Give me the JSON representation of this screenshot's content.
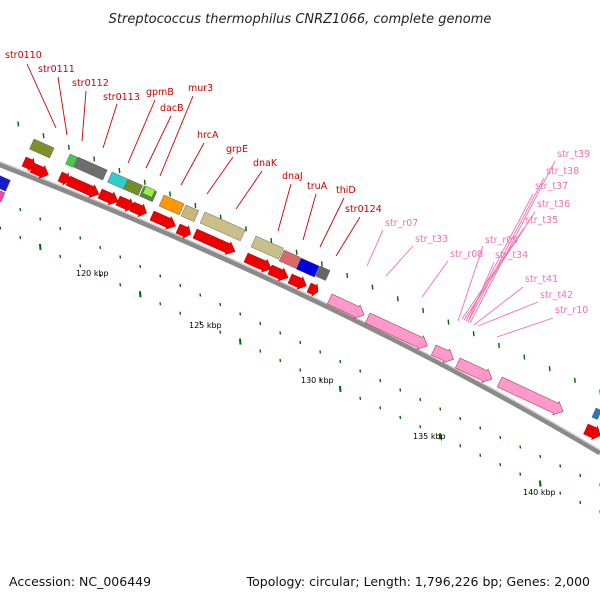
{
  "title": "Streptococcus thermophilus CNRZ1066, complete genome",
  "footer": {
    "accession": "Accession: NC_006449",
    "summary": "Topology: circular; Length: 1,796,226 bp; Genes: 2,000"
  },
  "colors": {
    "cds": "#ee0000",
    "rna": "#ff99cc",
    "backbone": "#888888",
    "tick": "#006600",
    "label_gene": "#cc0000",
    "label_rna": "#f26fb0"
  },
  "ruler": [
    {
      "label": "120 kbp"
    },
    {
      "label": "125 kbp"
    },
    {
      "label": "130 kbp"
    },
    {
      "label": "135 kbp"
    },
    {
      "label": "140 kbp"
    }
  ],
  "gene_labels": [
    "str0110",
    "str0111",
    "str0112",
    "str0113",
    "gpmB",
    "dacB",
    "mur3",
    "hrcA",
    "grpE",
    "dnaK",
    "dnaJ",
    "truA",
    "thiD",
    "str0124"
  ],
  "rna_labels": [
    "str_r07",
    "str_t33",
    "str_r08",
    "str_r09",
    "str_t34",
    "str_t35",
    "str_t36",
    "str_t37",
    "str_t38",
    "str_t39",
    "str_t41",
    "str_t42",
    "str_r10"
  ]
}
